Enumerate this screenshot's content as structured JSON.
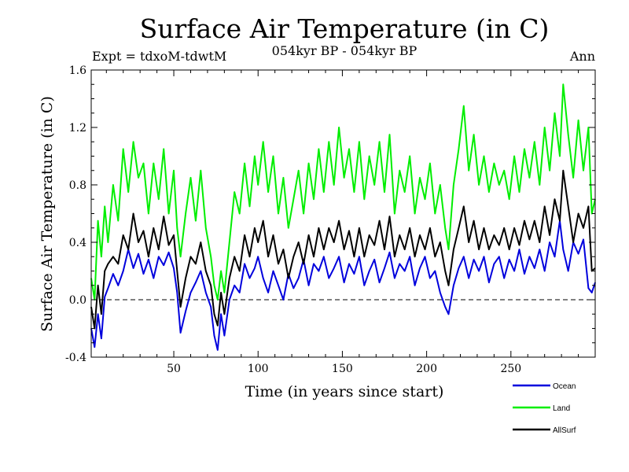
{
  "chart_data": {
    "type": "line",
    "title": "Surface Air Temperature (in C)",
    "subtitle": "054kyr BP - 054kyr BP",
    "experiment": "Expt = tdxoM-tdwtM",
    "season": "Ann",
    "xlabel": "Time (in years since start)",
    "ylabel": "Surface Air Temperature (in C)",
    "xlim": [
      1,
      300
    ],
    "ylim": [
      -0.4,
      1.6
    ],
    "x_ticks": [
      50,
      100,
      150,
      200,
      250
    ],
    "y_ticks": [
      "-0.4",
      "0.0",
      "0.4",
      "0.8",
      "1.2",
      "1.6"
    ],
    "zero_line": true,
    "grid": false,
    "legend_position": "bottom-right",
    "series": [
      {
        "name": "Ocean",
        "color": "#0000dd",
        "points": [
          [
            1,
            -0.2
          ],
          [
            3,
            -0.33
          ],
          [
            5,
            -0.1
          ],
          [
            7,
            -0.27
          ],
          [
            9,
            0.02
          ],
          [
            11,
            0.08
          ],
          [
            14,
            0.18
          ],
          [
            17,
            0.1
          ],
          [
            20,
            0.2
          ],
          [
            23,
            0.35
          ],
          [
            26,
            0.22
          ],
          [
            29,
            0.32
          ],
          [
            32,
            0.18
          ],
          [
            35,
            0.28
          ],
          [
            38,
            0.15
          ],
          [
            41,
            0.3
          ],
          [
            44,
            0.24
          ],
          [
            47,
            0.33
          ],
          [
            50,
            0.22
          ],
          [
            52,
            0.05
          ],
          [
            54,
            -0.23
          ],
          [
            57,
            -0.08
          ],
          [
            60,
            0.05
          ],
          [
            63,
            0.12
          ],
          [
            66,
            0.2
          ],
          [
            69,
            0.05
          ],
          [
            72,
            -0.05
          ],
          [
            74,
            -0.25
          ],
          [
            76,
            -0.35
          ],
          [
            78,
            -0.1
          ],
          [
            80,
            -0.25
          ],
          [
            83,
            0.0
          ],
          [
            86,
            0.1
          ],
          [
            89,
            0.05
          ],
          [
            92,
            0.25
          ],
          [
            95,
            0.15
          ],
          [
            98,
            0.22
          ],
          [
            100,
            0.3
          ],
          [
            103,
            0.15
          ],
          [
            106,
            0.05
          ],
          [
            109,
            0.2
          ],
          [
            112,
            0.1
          ],
          [
            115,
            0.0
          ],
          [
            118,
            0.18
          ],
          [
            121,
            0.08
          ],
          [
            124,
            0.15
          ],
          [
            127,
            0.28
          ],
          [
            130,
            0.1
          ],
          [
            133,
            0.25
          ],
          [
            136,
            0.2
          ],
          [
            139,
            0.3
          ],
          [
            142,
            0.15
          ],
          [
            145,
            0.22
          ],
          [
            148,
            0.3
          ],
          [
            151,
            0.12
          ],
          [
            154,
            0.25
          ],
          [
            157,
            0.18
          ],
          [
            160,
            0.3
          ],
          [
            163,
            0.1
          ],
          [
            166,
            0.2
          ],
          [
            169,
            0.28
          ],
          [
            172,
            0.12
          ],
          [
            175,
            0.22
          ],
          [
            178,
            0.33
          ],
          [
            181,
            0.15
          ],
          [
            184,
            0.25
          ],
          [
            187,
            0.2
          ],
          [
            190,
            0.3
          ],
          [
            193,
            0.1
          ],
          [
            196,
            0.22
          ],
          [
            199,
            0.3
          ],
          [
            202,
            0.15
          ],
          [
            205,
            0.2
          ],
          [
            208,
            0.05
          ],
          [
            211,
            -0.05
          ],
          [
            213,
            -0.1
          ],
          [
            216,
            0.1
          ],
          [
            219,
            0.22
          ],
          [
            222,
            0.3
          ],
          [
            225,
            0.15
          ],
          [
            228,
            0.28
          ],
          [
            231,
            0.2
          ],
          [
            234,
            0.3
          ],
          [
            237,
            0.12
          ],
          [
            240,
            0.25
          ],
          [
            243,
            0.3
          ],
          [
            246,
            0.15
          ],
          [
            249,
            0.28
          ],
          [
            252,
            0.2
          ],
          [
            255,
            0.35
          ],
          [
            258,
            0.18
          ],
          [
            261,
            0.3
          ],
          [
            264,
            0.22
          ],
          [
            267,
            0.35
          ],
          [
            270,
            0.2
          ],
          [
            273,
            0.4
          ],
          [
            276,
            0.3
          ],
          [
            279,
            0.55
          ],
          [
            281,
            0.35
          ],
          [
            284,
            0.2
          ],
          [
            287,
            0.4
          ],
          [
            290,
            0.32
          ],
          [
            293,
            0.42
          ],
          [
            296,
            0.08
          ],
          [
            298,
            0.05
          ],
          [
            300,
            0.12
          ]
        ]
      },
      {
        "name": "Land",
        "color": "#00ee00",
        "points": [
          [
            1,
            0.15
          ],
          [
            3,
            0.0
          ],
          [
            5,
            0.55
          ],
          [
            7,
            0.3
          ],
          [
            9,
            0.65
          ],
          [
            11,
            0.4
          ],
          [
            14,
            0.8
          ],
          [
            17,
            0.55
          ],
          [
            20,
            1.05
          ],
          [
            23,
            0.75
          ],
          [
            26,
            1.1
          ],
          [
            29,
            0.85
          ],
          [
            32,
            0.95
          ],
          [
            35,
            0.6
          ],
          [
            38,
            0.95
          ],
          [
            41,
            0.7
          ],
          [
            44,
            1.05
          ],
          [
            47,
            0.6
          ],
          [
            50,
            0.9
          ],
          [
            52,
            0.5
          ],
          [
            54,
            0.3
          ],
          [
            57,
            0.6
          ],
          [
            60,
            0.85
          ],
          [
            63,
            0.55
          ],
          [
            66,
            0.9
          ],
          [
            69,
            0.5
          ],
          [
            72,
            0.3
          ],
          [
            74,
            0.1
          ],
          [
            76,
            0.0
          ],
          [
            78,
            0.2
          ],
          [
            80,
            0.05
          ],
          [
            83,
            0.4
          ],
          [
            86,
            0.75
          ],
          [
            89,
            0.6
          ],
          [
            92,
            0.95
          ],
          [
            95,
            0.65
          ],
          [
            98,
            1.0
          ],
          [
            100,
            0.8
          ],
          [
            103,
            1.1
          ],
          [
            106,
            0.75
          ],
          [
            109,
            1.0
          ],
          [
            112,
            0.6
          ],
          [
            115,
            0.85
          ],
          [
            118,
            0.5
          ],
          [
            121,
            0.7
          ],
          [
            124,
            0.9
          ],
          [
            127,
            0.6
          ],
          [
            130,
            0.95
          ],
          [
            133,
            0.7
          ],
          [
            136,
            1.05
          ],
          [
            139,
            0.75
          ],
          [
            142,
            1.1
          ],
          [
            145,
            0.8
          ],
          [
            148,
            1.2
          ],
          [
            151,
            0.85
          ],
          [
            154,
            1.05
          ],
          [
            157,
            0.75
          ],
          [
            160,
            1.1
          ],
          [
            163,
            0.7
          ],
          [
            166,
            1.0
          ],
          [
            169,
            0.8
          ],
          [
            172,
            1.1
          ],
          [
            175,
            0.75
          ],
          [
            178,
            1.15
          ],
          [
            181,
            0.6
          ],
          [
            184,
            0.9
          ],
          [
            187,
            0.75
          ],
          [
            190,
            1.0
          ],
          [
            193,
            0.6
          ],
          [
            196,
            0.85
          ],
          [
            199,
            0.7
          ],
          [
            202,
            0.95
          ],
          [
            205,
            0.6
          ],
          [
            208,
            0.8
          ],
          [
            211,
            0.5
          ],
          [
            213,
            0.35
          ],
          [
            216,
            0.8
          ],
          [
            219,
            1.05
          ],
          [
            222,
            1.35
          ],
          [
            225,
            0.9
          ],
          [
            228,
            1.15
          ],
          [
            231,
            0.8
          ],
          [
            234,
            1.0
          ],
          [
            237,
            0.75
          ],
          [
            240,
            0.95
          ],
          [
            243,
            0.8
          ],
          [
            246,
            0.9
          ],
          [
            249,
            0.7
          ],
          [
            252,
            1.0
          ],
          [
            255,
            0.75
          ],
          [
            258,
            1.05
          ],
          [
            261,
            0.85
          ],
          [
            264,
            1.1
          ],
          [
            267,
            0.8
          ],
          [
            270,
            1.2
          ],
          [
            273,
            0.9
          ],
          [
            276,
            1.3
          ],
          [
            279,
            1.0
          ],
          [
            281,
            1.5
          ],
          [
            284,
            1.15
          ],
          [
            287,
            0.85
          ],
          [
            290,
            1.25
          ],
          [
            293,
            0.9
          ],
          [
            296,
            1.2
          ],
          [
            298,
            0.6
          ],
          [
            300,
            0.7
          ]
        ]
      },
      {
        "name": "AllSurf",
        "color": "#000000",
        "points": [
          [
            1,
            -0.05
          ],
          [
            3,
            -0.2
          ],
          [
            5,
            0.1
          ],
          [
            7,
            -0.1
          ],
          [
            9,
            0.2
          ],
          [
            11,
            0.25
          ],
          [
            14,
            0.3
          ],
          [
            17,
            0.25
          ],
          [
            20,
            0.45
          ],
          [
            23,
            0.35
          ],
          [
            26,
            0.6
          ],
          [
            29,
            0.4
          ],
          [
            32,
            0.48
          ],
          [
            35,
            0.3
          ],
          [
            38,
            0.5
          ],
          [
            41,
            0.35
          ],
          [
            44,
            0.58
          ],
          [
            47,
            0.38
          ],
          [
            50,
            0.45
          ],
          [
            52,
            0.2
          ],
          [
            54,
            -0.05
          ],
          [
            57,
            0.15
          ],
          [
            60,
            0.3
          ],
          [
            63,
            0.25
          ],
          [
            66,
            0.4
          ],
          [
            69,
            0.2
          ],
          [
            72,
            0.1
          ],
          [
            74,
            -0.1
          ],
          [
            76,
            -0.18
          ],
          [
            78,
            0.05
          ],
          [
            80,
            -0.1
          ],
          [
            83,
            0.15
          ],
          [
            86,
            0.3
          ],
          [
            89,
            0.2
          ],
          [
            92,
            0.45
          ],
          [
            95,
            0.3
          ],
          [
            98,
            0.5
          ],
          [
            100,
            0.4
          ],
          [
            103,
            0.55
          ],
          [
            106,
            0.3
          ],
          [
            109,
            0.45
          ],
          [
            112,
            0.25
          ],
          [
            115,
            0.35
          ],
          [
            118,
            0.15
          ],
          [
            121,
            0.3
          ],
          [
            124,
            0.4
          ],
          [
            127,
            0.25
          ],
          [
            130,
            0.45
          ],
          [
            133,
            0.3
          ],
          [
            136,
            0.5
          ],
          [
            139,
            0.35
          ],
          [
            142,
            0.5
          ],
          [
            145,
            0.4
          ],
          [
            148,
            0.55
          ],
          [
            151,
            0.35
          ],
          [
            154,
            0.48
          ],
          [
            157,
            0.3
          ],
          [
            160,
            0.5
          ],
          [
            163,
            0.3
          ],
          [
            166,
            0.45
          ],
          [
            169,
            0.38
          ],
          [
            172,
            0.55
          ],
          [
            175,
            0.35
          ],
          [
            178,
            0.58
          ],
          [
            181,
            0.3
          ],
          [
            184,
            0.45
          ],
          [
            187,
            0.35
          ],
          [
            190,
            0.5
          ],
          [
            193,
            0.3
          ],
          [
            196,
            0.45
          ],
          [
            199,
            0.35
          ],
          [
            202,
            0.5
          ],
          [
            205,
            0.3
          ],
          [
            208,
            0.4
          ],
          [
            211,
            0.2
          ],
          [
            213,
            0.1
          ],
          [
            216,
            0.35
          ],
          [
            219,
            0.5
          ],
          [
            222,
            0.65
          ],
          [
            225,
            0.4
          ],
          [
            228,
            0.55
          ],
          [
            231,
            0.35
          ],
          [
            234,
            0.5
          ],
          [
            237,
            0.35
          ],
          [
            240,
            0.45
          ],
          [
            243,
            0.38
          ],
          [
            246,
            0.5
          ],
          [
            249,
            0.35
          ],
          [
            252,
            0.5
          ],
          [
            255,
            0.38
          ],
          [
            258,
            0.55
          ],
          [
            261,
            0.42
          ],
          [
            264,
            0.55
          ],
          [
            267,
            0.4
          ],
          [
            270,
            0.65
          ],
          [
            273,
            0.45
          ],
          [
            276,
            0.7
          ],
          [
            279,
            0.55
          ],
          [
            281,
            0.9
          ],
          [
            284,
            0.65
          ],
          [
            287,
            0.4
          ],
          [
            290,
            0.6
          ],
          [
            293,
            0.5
          ],
          [
            296,
            0.65
          ],
          [
            298,
            0.2
          ],
          [
            300,
            0.22
          ]
        ]
      }
    ]
  }
}
